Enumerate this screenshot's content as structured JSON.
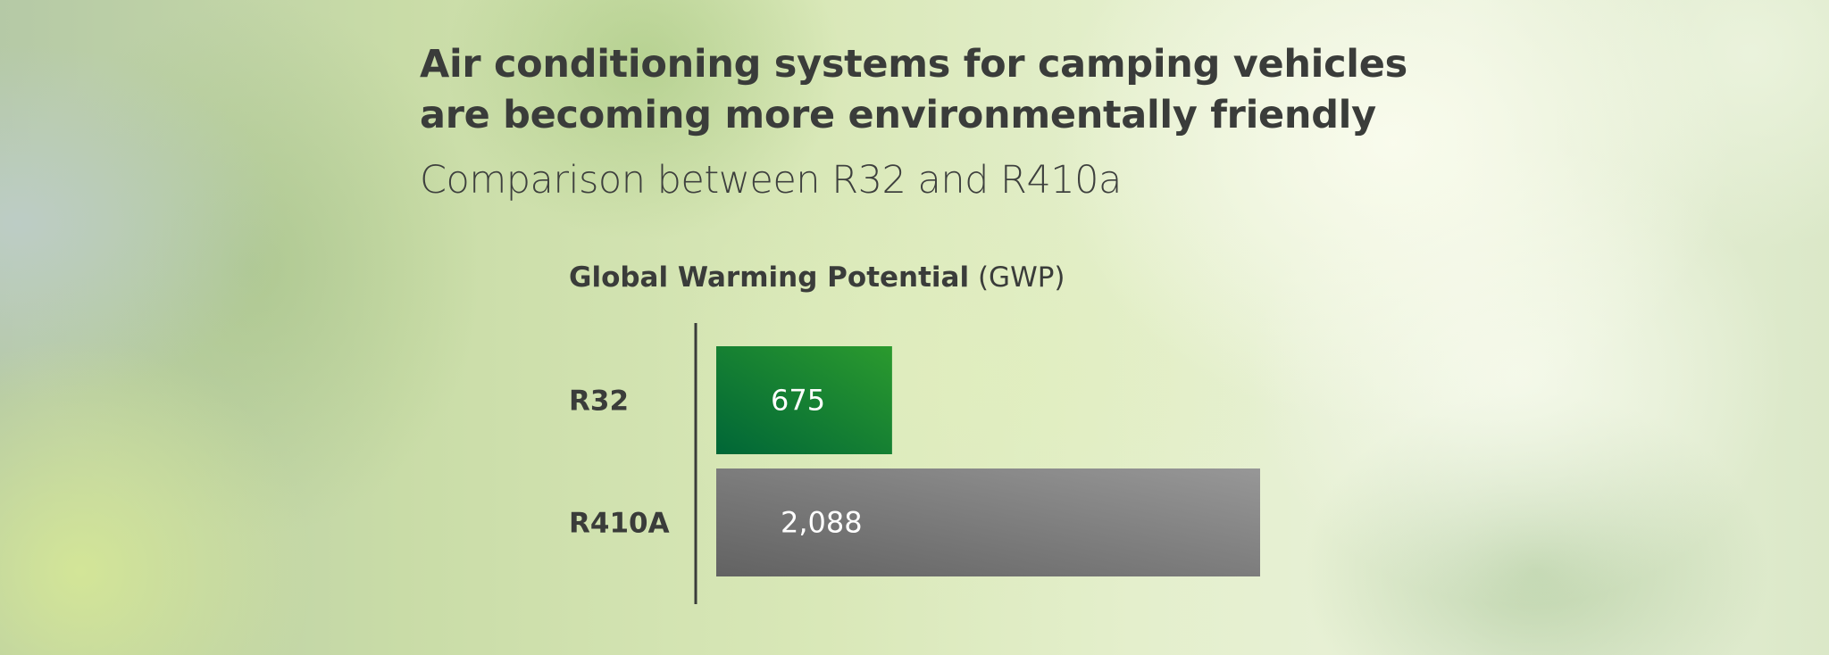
{
  "title": {
    "line1": "Air conditioning systems for camping vehicles",
    "line2": "are becoming more environmentally friendly"
  },
  "subtitle": "Comparison between R32 and R410a",
  "chart_heading": {
    "bold": "Global Warming Potential",
    "light": "(GWP)"
  },
  "colors": {
    "r32_bar_dark": "#006637",
    "r32_bar_light": "#2b9a2e",
    "r410a_bar_dark": "#626262",
    "r410a_bar_light": "#979797",
    "text": "#3a3c3a"
  },
  "chart_data": {
    "type": "bar",
    "orientation": "horizontal",
    "title": "Global Warming Potential (GWP)",
    "categories": [
      "R32",
      "R410A"
    ],
    "values": [
      675,
      2088
    ],
    "value_labels": [
      "675",
      "2,088"
    ],
    "xlim": [
      0,
      2088
    ],
    "grid": false,
    "legend": "none"
  }
}
